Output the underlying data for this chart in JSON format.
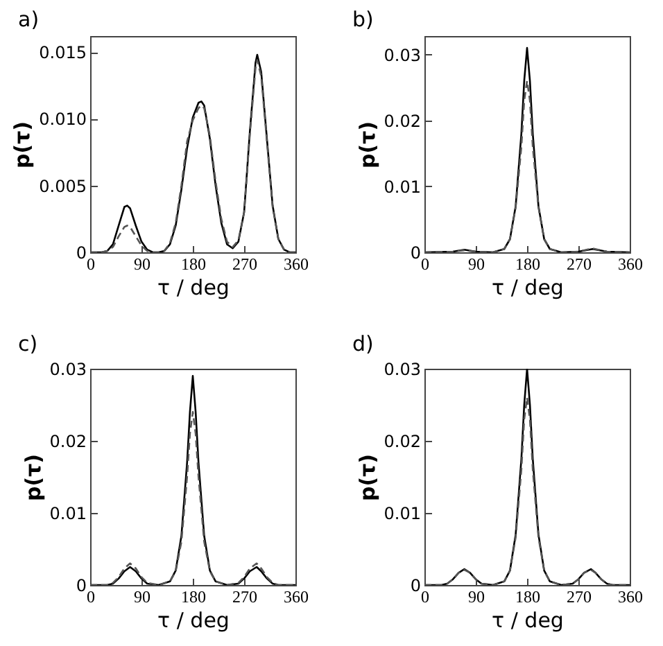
{
  "chart_data": [
    {
      "type": "line",
      "title": "a)",
      "xlabel": "τ / deg",
      "ylabel": "p(τ)",
      "xlim": [
        0,
        360
      ],
      "xticks": [
        0,
        90,
        180,
        270,
        360
      ],
      "ylim": [
        0,
        0.0162
      ],
      "yticks": [
        0,
        {
          "value": 0.005,
          "label": "0.005"
        },
        {
          "value": 0.01,
          "label": "0.010"
        },
        {
          "value": 0.015,
          "label": "0.015"
        }
      ],
      "grid": false,
      "legend": false,
      "series": [
        {
          "color": "#000000",
          "line_style": "solid",
          "x": [
            0,
            20,
            30,
            40,
            50,
            60,
            65,
            70,
            80,
            90,
            100,
            110,
            120,
            130,
            140,
            150,
            160,
            170,
            180,
            190,
            195,
            200,
            210,
            220,
            230,
            240,
            250,
            260,
            270,
            280,
            290,
            293,
            300,
            310,
            320,
            330,
            340,
            350,
            360
          ],
          "values": [
            0,
            0,
            0.0001,
            0.0006,
            0.002,
            0.0034,
            0.0035,
            0.0033,
            0.002,
            0.0008,
            0.0002,
            0,
            0,
            0.0001,
            0.0006,
            0.002,
            0.0047,
            0.0078,
            0.0101,
            0.0112,
            0.0113,
            0.011,
            0.0085,
            0.005,
            0.0022,
            0.0006,
            0.0003,
            0.0008,
            0.003,
            0.009,
            0.0142,
            0.0148,
            0.0135,
            0.0085,
            0.0035,
            0.001,
            0.0002,
            0,
            0
          ]
        },
        {
          "color": "#555555",
          "line_style": "dashed",
          "x": [
            0,
            20,
            30,
            40,
            50,
            60,
            65,
            70,
            80,
            90,
            100,
            110,
            120,
            130,
            140,
            150,
            160,
            170,
            180,
            190,
            195,
            200,
            210,
            220,
            230,
            240,
            250,
            260,
            270,
            280,
            290,
            293,
            300,
            310,
            320,
            330,
            340,
            350,
            360
          ],
          "values": [
            0,
            0,
            0.0001,
            0.0004,
            0.0012,
            0.0019,
            0.002,
            0.0019,
            0.0012,
            0.0005,
            0.0001,
            0,
            0,
            0.0001,
            0.0007,
            0.0022,
            0.005,
            0.0083,
            0.0099,
            0.0108,
            0.011,
            0.0108,
            0.0087,
            0.0053,
            0.0025,
            0.0008,
            0.0004,
            0.0009,
            0.003,
            0.0088,
            0.0138,
            0.0144,
            0.0132,
            0.0083,
            0.0034,
            0.001,
            0.0002,
            0,
            0
          ]
        }
      ]
    },
    {
      "type": "line",
      "title": "b)",
      "xlabel": "τ / deg",
      "ylabel": "p(τ)",
      "xlim": [
        0,
        360
      ],
      "xticks": [
        0,
        90,
        180,
        270,
        360
      ],
      "ylim": [
        0,
        0.0328
      ],
      "yticks": [
        0,
        0.01,
        0.02,
        0.03
      ],
      "grid": false,
      "legend": false,
      "series": [
        {
          "color": "#000000",
          "line_style": "solid",
          "x": [
            0,
            50,
            70,
            90,
            120,
            140,
            150,
            160,
            170,
            175,
            180,
            185,
            190,
            200,
            210,
            220,
            240,
            270,
            295,
            320,
            360
          ],
          "values": [
            0,
            0.0001,
            0.0004,
            0.0001,
            0,
            0.0005,
            0.002,
            0.007,
            0.018,
            0.026,
            0.031,
            0.026,
            0.018,
            0.007,
            0.002,
            0.0005,
            0,
            0.0001,
            0.0005,
            0.0001,
            0
          ]
        },
        {
          "color": "#555555",
          "line_style": "dashed",
          "x": [
            0,
            50,
            70,
            90,
            120,
            140,
            150,
            160,
            170,
            175,
            180,
            185,
            190,
            200,
            210,
            220,
            240,
            270,
            295,
            320,
            360
          ],
          "values": [
            0,
            0.0001,
            0.0003,
            0.0001,
            0,
            0.0005,
            0.002,
            0.0068,
            0.016,
            0.023,
            0.026,
            0.023,
            0.016,
            0.0068,
            0.002,
            0.0005,
            0,
            0.0001,
            0.0006,
            0.0001,
            0
          ]
        }
      ]
    },
    {
      "type": "line",
      "title": "c)",
      "xlabel": "τ / deg",
      "ylabel": "p(τ)",
      "xlim": [
        0,
        360
      ],
      "xticks": [
        0,
        90,
        180,
        270,
        360
      ],
      "ylim": [
        0,
        0.03
      ],
      "yticks": [
        0,
        0.01,
        0.02,
        0.03
      ],
      "grid": false,
      "legend": false,
      "series": [
        {
          "color": "#000000",
          "line_style": "solid",
          "x": [
            0,
            30,
            40,
            50,
            60,
            70,
            80,
            90,
            100,
            120,
            140,
            150,
            160,
            170,
            175,
            180,
            185,
            190,
            200,
            210,
            220,
            240,
            260,
            270,
            280,
            292,
            300,
            310,
            320,
            330,
            360
          ],
          "values": [
            0,
            0,
            0.0002,
            0.0009,
            0.0019,
            0.0025,
            0.0019,
            0.0009,
            0.0002,
            0,
            0.0005,
            0.002,
            0.0068,
            0.017,
            0.024,
            0.029,
            0.024,
            0.017,
            0.0068,
            0.002,
            0.0005,
            0,
            0.0002,
            0.0009,
            0.0019,
            0.0025,
            0.0019,
            0.0009,
            0.0002,
            0,
            0
          ]
        },
        {
          "color": "#555555",
          "line_style": "dashed",
          "x": [
            0,
            30,
            40,
            50,
            60,
            70,
            80,
            90,
            100,
            120,
            140,
            150,
            160,
            170,
            175,
            180,
            185,
            190,
            200,
            210,
            220,
            240,
            260,
            270,
            280,
            292,
            300,
            310,
            320,
            330,
            360
          ],
          "values": [
            0,
            0,
            0.0003,
            0.0011,
            0.0023,
            0.003,
            0.0023,
            0.0011,
            0.0003,
            0,
            0.0005,
            0.0019,
            0.006,
            0.015,
            0.021,
            0.024,
            0.021,
            0.015,
            0.006,
            0.0019,
            0.0005,
            0,
            0.0003,
            0.0011,
            0.0023,
            0.003,
            0.0023,
            0.0011,
            0.0003,
            0,
            0
          ]
        }
      ]
    },
    {
      "type": "line",
      "title": "d)",
      "xlabel": "τ / deg",
      "ylabel": "p(τ)",
      "xlim": [
        0,
        360
      ],
      "xticks": [
        0,
        90,
        180,
        270,
        360
      ],
      "ylim": [
        0,
        0.03
      ],
      "yticks": [
        0,
        0.01,
        0.02,
        0.03
      ],
      "grid": false,
      "legend": false,
      "series": [
        {
          "color": "#000000",
          "line_style": "solid",
          "x": [
            0,
            30,
            40,
            50,
            60,
            70,
            80,
            90,
            100,
            120,
            140,
            150,
            160,
            170,
            175,
            180,
            185,
            190,
            200,
            210,
            220,
            240,
            260,
            270,
            280,
            292,
            300,
            310,
            320,
            330,
            360
          ],
          "values": [
            0,
            0,
            0.0002,
            0.0008,
            0.0017,
            0.0022,
            0.0017,
            0.0008,
            0.0002,
            0,
            0.0005,
            0.002,
            0.007,
            0.0175,
            0.025,
            0.03,
            0.025,
            0.0175,
            0.007,
            0.002,
            0.0005,
            0,
            0.0002,
            0.0008,
            0.0017,
            0.0022,
            0.0017,
            0.0008,
            0.0002,
            0,
            0
          ]
        },
        {
          "color": "#555555",
          "line_style": "dashed",
          "x": [
            0,
            30,
            40,
            50,
            60,
            70,
            80,
            90,
            100,
            120,
            140,
            150,
            160,
            170,
            175,
            180,
            185,
            190,
            200,
            210,
            220,
            240,
            260,
            270,
            280,
            292,
            300,
            310,
            320,
            330,
            360
          ],
          "values": [
            0,
            0,
            0.0002,
            0.0008,
            0.0017,
            0.0021,
            0.0017,
            0.0008,
            0.0002,
            0,
            0.0005,
            0.002,
            0.0066,
            0.016,
            0.023,
            0.026,
            0.023,
            0.016,
            0.0066,
            0.002,
            0.0005,
            0,
            0.0002,
            0.0008,
            0.0017,
            0.0021,
            0.0017,
            0.0008,
            0.0002,
            0,
            0
          ]
        }
      ]
    }
  ]
}
